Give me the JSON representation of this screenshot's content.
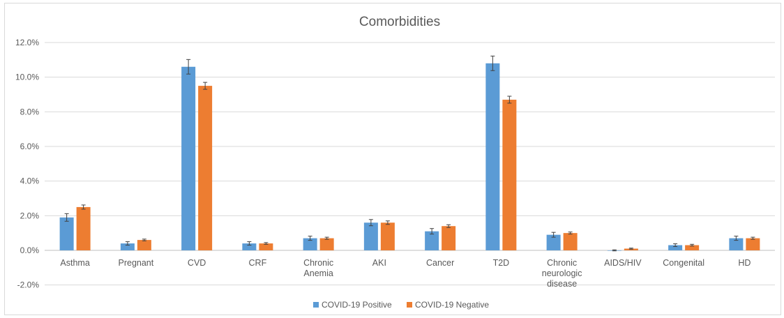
{
  "chart_data": {
    "type": "bar",
    "title": "Comorbidities",
    "categories": [
      [
        "Asthma"
      ],
      [
        "Pregnant"
      ],
      [
        "CVD"
      ],
      [
        "CRF"
      ],
      [
        "Chronic",
        "Anemia"
      ],
      [
        "AKI"
      ],
      [
        "Cancer"
      ],
      [
        "T2D"
      ],
      [
        "Chronic",
        "neurologic",
        "disease"
      ],
      [
        "AIDS/HIV"
      ],
      [
        "Congenital"
      ],
      [
        "HD"
      ]
    ],
    "series": [
      {
        "name": "COVID-19 Positive",
        "color": "#5b9bd5",
        "values": [
          1.9,
          0.4,
          10.6,
          0.4,
          0.7,
          1.6,
          1.1,
          10.8,
          0.9,
          0.0,
          0.3,
          0.7
        ],
        "errors": [
          0.22,
          0.1,
          0.42,
          0.1,
          0.12,
          0.18,
          0.16,
          0.42,
          0.14,
          0.03,
          0.08,
          0.12
        ]
      },
      {
        "name": "COVID-19 Negative",
        "color": "#ed7d31",
        "values": [
          2.5,
          0.6,
          9.5,
          0.4,
          0.7,
          1.6,
          1.4,
          8.7,
          1.0,
          0.1,
          0.3,
          0.7
        ],
        "errors": [
          0.12,
          0.05,
          0.2,
          0.05,
          0.06,
          0.1,
          0.08,
          0.2,
          0.06,
          0.03,
          0.05,
          0.06
        ]
      }
    ],
    "ylim": [
      -2.0,
      12.0
    ],
    "yticks": [
      "12.0%",
      "10.0%",
      "8.0%",
      "6.0%",
      "4.0%",
      "2.0%",
      "0.0%",
      "-2.0%"
    ],
    "ytick_values": [
      12,
      10,
      8,
      6,
      4,
      2,
      0,
      -2
    ],
    "grid": true,
    "legend_position": "bottom"
  }
}
